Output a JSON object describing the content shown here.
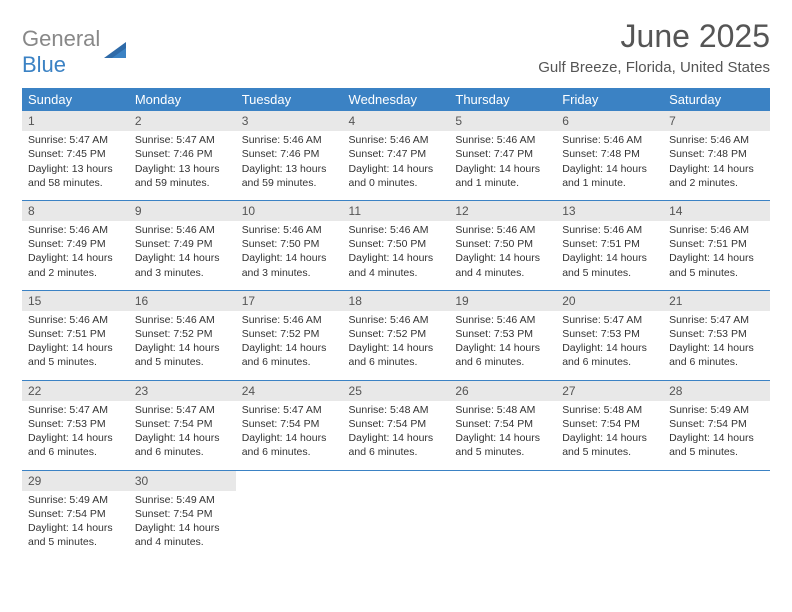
{
  "logo": {
    "word1": "General",
    "word2": "Blue"
  },
  "title": "June 2025",
  "location": "Gulf Breeze, Florida, United States",
  "colors": {
    "header_bg": "#3b82c4",
    "header_text": "#ffffff",
    "daynum_bg": "#e8e8e8",
    "text": "#333333",
    "title_text": "#555555",
    "row_border": "#3b82c4",
    "logo_gray": "#888888",
    "logo_blue": "#3b82c4",
    "page_bg": "#ffffff"
  },
  "typography": {
    "title_fontsize": 32,
    "location_fontsize": 15,
    "header_fontsize": 13,
    "daynum_fontsize": 12,
    "body_fontsize": 10.5,
    "logo_fontsize": 22
  },
  "day_headers": [
    "Sunday",
    "Monday",
    "Tuesday",
    "Wednesday",
    "Thursday",
    "Friday",
    "Saturday"
  ],
  "weeks": [
    [
      {
        "n": "1",
        "sr": "Sunrise: 5:47 AM",
        "ss": "Sunset: 7:45 PM",
        "dl": "Daylight: 13 hours and 58 minutes."
      },
      {
        "n": "2",
        "sr": "Sunrise: 5:47 AM",
        "ss": "Sunset: 7:46 PM",
        "dl": "Daylight: 13 hours and 59 minutes."
      },
      {
        "n": "3",
        "sr": "Sunrise: 5:46 AM",
        "ss": "Sunset: 7:46 PM",
        "dl": "Daylight: 13 hours and 59 minutes."
      },
      {
        "n": "4",
        "sr": "Sunrise: 5:46 AM",
        "ss": "Sunset: 7:47 PM",
        "dl": "Daylight: 14 hours and 0 minutes."
      },
      {
        "n": "5",
        "sr": "Sunrise: 5:46 AM",
        "ss": "Sunset: 7:47 PM",
        "dl": "Daylight: 14 hours and 1 minute."
      },
      {
        "n": "6",
        "sr": "Sunrise: 5:46 AM",
        "ss": "Sunset: 7:48 PM",
        "dl": "Daylight: 14 hours and 1 minute."
      },
      {
        "n": "7",
        "sr": "Sunrise: 5:46 AM",
        "ss": "Sunset: 7:48 PM",
        "dl": "Daylight: 14 hours and 2 minutes."
      }
    ],
    [
      {
        "n": "8",
        "sr": "Sunrise: 5:46 AM",
        "ss": "Sunset: 7:49 PM",
        "dl": "Daylight: 14 hours and 2 minutes."
      },
      {
        "n": "9",
        "sr": "Sunrise: 5:46 AM",
        "ss": "Sunset: 7:49 PM",
        "dl": "Daylight: 14 hours and 3 minutes."
      },
      {
        "n": "10",
        "sr": "Sunrise: 5:46 AM",
        "ss": "Sunset: 7:50 PM",
        "dl": "Daylight: 14 hours and 3 minutes."
      },
      {
        "n": "11",
        "sr": "Sunrise: 5:46 AM",
        "ss": "Sunset: 7:50 PM",
        "dl": "Daylight: 14 hours and 4 minutes."
      },
      {
        "n": "12",
        "sr": "Sunrise: 5:46 AM",
        "ss": "Sunset: 7:50 PM",
        "dl": "Daylight: 14 hours and 4 minutes."
      },
      {
        "n": "13",
        "sr": "Sunrise: 5:46 AM",
        "ss": "Sunset: 7:51 PM",
        "dl": "Daylight: 14 hours and 5 minutes."
      },
      {
        "n": "14",
        "sr": "Sunrise: 5:46 AM",
        "ss": "Sunset: 7:51 PM",
        "dl": "Daylight: 14 hours and 5 minutes."
      }
    ],
    [
      {
        "n": "15",
        "sr": "Sunrise: 5:46 AM",
        "ss": "Sunset: 7:51 PM",
        "dl": "Daylight: 14 hours and 5 minutes."
      },
      {
        "n": "16",
        "sr": "Sunrise: 5:46 AM",
        "ss": "Sunset: 7:52 PM",
        "dl": "Daylight: 14 hours and 5 minutes."
      },
      {
        "n": "17",
        "sr": "Sunrise: 5:46 AM",
        "ss": "Sunset: 7:52 PM",
        "dl": "Daylight: 14 hours and 6 minutes."
      },
      {
        "n": "18",
        "sr": "Sunrise: 5:46 AM",
        "ss": "Sunset: 7:52 PM",
        "dl": "Daylight: 14 hours and 6 minutes."
      },
      {
        "n": "19",
        "sr": "Sunrise: 5:46 AM",
        "ss": "Sunset: 7:53 PM",
        "dl": "Daylight: 14 hours and 6 minutes."
      },
      {
        "n": "20",
        "sr": "Sunrise: 5:47 AM",
        "ss": "Sunset: 7:53 PM",
        "dl": "Daylight: 14 hours and 6 minutes."
      },
      {
        "n": "21",
        "sr": "Sunrise: 5:47 AM",
        "ss": "Sunset: 7:53 PM",
        "dl": "Daylight: 14 hours and 6 minutes."
      }
    ],
    [
      {
        "n": "22",
        "sr": "Sunrise: 5:47 AM",
        "ss": "Sunset: 7:53 PM",
        "dl": "Daylight: 14 hours and 6 minutes."
      },
      {
        "n": "23",
        "sr": "Sunrise: 5:47 AM",
        "ss": "Sunset: 7:54 PM",
        "dl": "Daylight: 14 hours and 6 minutes."
      },
      {
        "n": "24",
        "sr": "Sunrise: 5:47 AM",
        "ss": "Sunset: 7:54 PM",
        "dl": "Daylight: 14 hours and 6 minutes."
      },
      {
        "n": "25",
        "sr": "Sunrise: 5:48 AM",
        "ss": "Sunset: 7:54 PM",
        "dl": "Daylight: 14 hours and 6 minutes."
      },
      {
        "n": "26",
        "sr": "Sunrise: 5:48 AM",
        "ss": "Sunset: 7:54 PM",
        "dl": "Daylight: 14 hours and 5 minutes."
      },
      {
        "n": "27",
        "sr": "Sunrise: 5:48 AM",
        "ss": "Sunset: 7:54 PM",
        "dl": "Daylight: 14 hours and 5 minutes."
      },
      {
        "n": "28",
        "sr": "Sunrise: 5:49 AM",
        "ss": "Sunset: 7:54 PM",
        "dl": "Daylight: 14 hours and 5 minutes."
      }
    ],
    [
      {
        "n": "29",
        "sr": "Sunrise: 5:49 AM",
        "ss": "Sunset: 7:54 PM",
        "dl": "Daylight: 14 hours and 5 minutes."
      },
      {
        "n": "30",
        "sr": "Sunrise: 5:49 AM",
        "ss": "Sunset: 7:54 PM",
        "dl": "Daylight: 14 hours and 4 minutes."
      },
      null,
      null,
      null,
      null,
      null
    ]
  ]
}
